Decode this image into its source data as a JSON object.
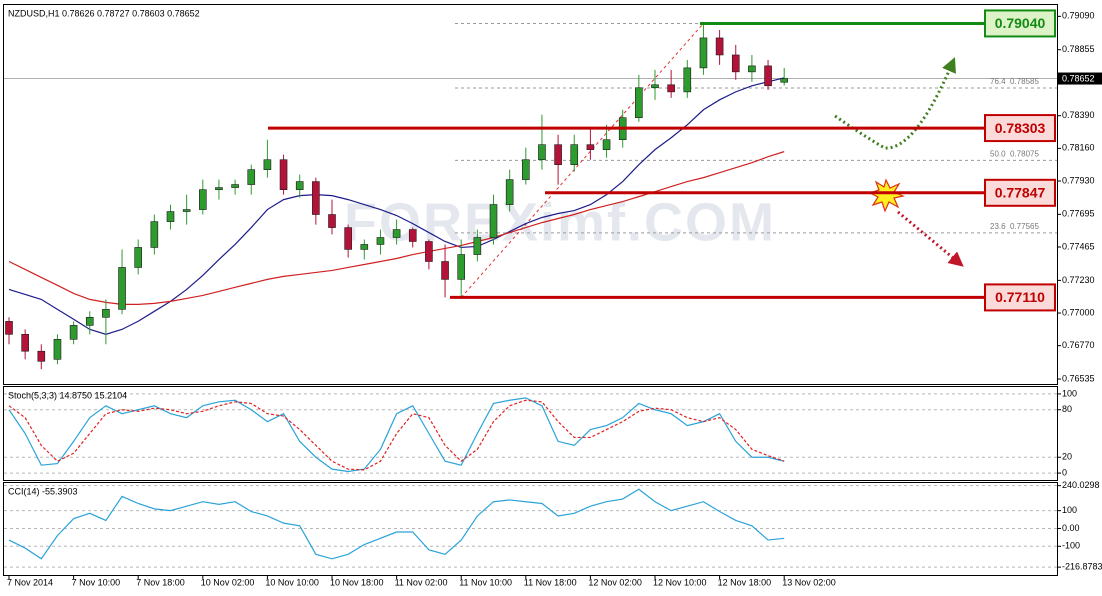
{
  "chart_data": [
    {
      "type": "candlestick",
      "title": "NZDUSD,H1  0.78626 0.78727 0.78603 0.78652",
      "watermark": "FOREXimf.COM",
      "ylim": [
        0.765,
        0.7917
      ],
      "yticks": [
        {
          "value": 0.7909,
          "label": "0.79090"
        },
        {
          "value": 0.78855,
          "label": "0.78855"
        },
        {
          "value": 0.7839,
          "label": "0.78390"
        },
        {
          "value": 0.7816,
          "label": "0.78160"
        },
        {
          "value": 0.7793,
          "label": "0.77930"
        },
        {
          "value": 0.77695,
          "label": "0.77695"
        },
        {
          "value": 0.77465,
          "label": "0.77465"
        },
        {
          "value": 0.7723,
          "label": "0.77230"
        },
        {
          "value": 0.77,
          "label": "0.77000"
        },
        {
          "value": 0.7677,
          "label": "0.76770"
        },
        {
          "value": 0.76535,
          "label": "0.76535"
        }
      ],
      "up_color": "#2e9b2e",
      "down_color": "#b5123a",
      "open": [
        0.76941,
        0.7685,
        0.76731,
        0.76674,
        0.76815,
        0.76913,
        0.7697,
        0.77026,
        0.77321,
        0.77462,
        0.77644,
        0.77715,
        0.77729,
        0.77869,
        0.77884,
        0.77905,
        0.7801,
        0.7808,
        0.77869,
        0.77926,
        0.77694,
        0.77602,
        0.77448,
        0.77483,
        0.77532,
        0.77588,
        0.77504,
        0.77363,
        0.77237,
        0.77412,
        0.77532,
        0.77764,
        0.7794,
        0.7808,
        0.78186,
        0.78045,
        0.78186,
        0.78151,
        0.78221,
        0.78376,
        0.78587,
        0.78608,
        0.78558,
        0.78727,
        0.78938,
        0.78818,
        0.78699,
        0.78741,
        0.78626
      ],
      "high": [
        0.7697,
        0.76885,
        0.7678,
        0.7685,
        0.76941,
        0.77012,
        0.77096,
        0.77448,
        0.77518,
        0.77694,
        0.77764,
        0.77834,
        0.7794,
        0.7794,
        0.7794,
        0.78045,
        0.78221,
        0.78115,
        0.77975,
        0.77954,
        0.77799,
        0.77623,
        0.77518,
        0.77588,
        0.77659,
        0.77602,
        0.77518,
        0.77483,
        0.77518,
        0.77588,
        0.77834,
        0.7801,
        0.78165,
        0.78397,
        0.78256,
        0.78256,
        0.78305,
        0.78326,
        0.78432,
        0.78678,
        0.78713,
        0.78713,
        0.78783,
        0.7904,
        0.78994,
        0.78889,
        0.78818,
        0.78783,
        0.78727
      ],
      "low": [
        0.7678,
        0.76674,
        0.76604,
        0.76639,
        0.7678,
        0.7685,
        0.7678,
        0.76991,
        0.77272,
        0.77412,
        0.77588,
        0.77623,
        0.77694,
        0.77799,
        0.77834,
        0.77834,
        0.77954,
        0.77834,
        0.77813,
        0.77623,
        0.77553,
        0.77391,
        0.77377,
        0.77412,
        0.77483,
        0.77462,
        0.77307,
        0.7711,
        0.7711,
        0.77363,
        0.77483,
        0.77715,
        0.77905,
        0.7801,
        0.77905,
        0.77996,
        0.7808,
        0.78094,
        0.78165,
        0.78347,
        0.78502,
        0.78516,
        0.78516,
        0.78678,
        0.78748,
        0.78643,
        0.78629,
        0.78572,
        0.78603
      ],
      "close": [
        0.7685,
        0.76731,
        0.7666,
        0.76815,
        0.76913,
        0.7697,
        0.77026,
        0.77321,
        0.77462,
        0.77644,
        0.77715,
        0.77729,
        0.77869,
        0.77884,
        0.77905,
        0.7801,
        0.7808,
        0.77869,
        0.77926,
        0.77694,
        0.77602,
        0.77448,
        0.77483,
        0.77532,
        0.77588,
        0.77504,
        0.77363,
        0.77237,
        0.77412,
        0.77532,
        0.77764,
        0.7794,
        0.7808,
        0.78186,
        0.78045,
        0.78186,
        0.78151,
        0.78221,
        0.78376,
        0.78587,
        0.78608,
        0.78558,
        0.78727,
        0.78938,
        0.78818,
        0.78699,
        0.78741,
        0.78601,
        0.78652
      ],
      "series": [
        {
          "color": "#1c1c8a",
          "values": [
            0.77166,
            0.77131,
            0.77096,
            0.77026,
            0.76956,
            0.76885,
            0.7685,
            0.76885,
            0.76942,
            0.77012,
            0.77082,
            0.77166,
            0.77265,
            0.77377,
            0.77483,
            0.77602,
            0.77729,
            0.77799,
            0.77827,
            0.77834,
            0.77827,
            0.77799,
            0.77764,
            0.77729,
            0.77687,
            0.7763,
            0.77567,
            0.77504,
            0.77462,
            0.77469,
            0.77518,
            0.77574,
            0.7763,
            0.77673,
            0.77701,
            0.77722,
            0.77764,
            0.77834,
            0.77926,
            0.78045,
            0.78151,
            0.78235,
            0.78326,
            0.78432,
            0.78502,
            0.78558,
            0.78601,
            0.78629,
            0.78657
          ]
        },
        {
          "color": "#d02020",
          "values": [
            0.77363,
            0.77307,
            0.77251,
            0.77195,
            0.77138,
            0.77096,
            0.77075,
            0.77061,
            0.77061,
            0.77068,
            0.77082,
            0.77103,
            0.77124,
            0.77152,
            0.77181,
            0.77209,
            0.77237,
            0.77258,
            0.77272,
            0.77286,
            0.773,
            0.77321,
            0.77342,
            0.77363,
            0.77384,
            0.77412,
            0.77434,
            0.77455,
            0.77476,
            0.77504,
            0.77532,
            0.77567,
            0.77602,
            0.77637,
            0.77666,
            0.77694,
            0.77729,
            0.77757,
            0.77785,
            0.7782,
            0.77855,
            0.77891,
            0.77926,
            0.77954,
            0.77989,
            0.78024,
            0.78059,
            0.78101,
            0.78137
          ]
        }
      ],
      "levels": [
        {
          "value": 0.7904,
          "label": "0.79040",
          "color": "#138a13",
          "fill": "#dcf3c8"
        },
        {
          "value": 0.78303,
          "label": "0.78303",
          "color": "#c00000",
          "fill": "#fbdada"
        },
        {
          "value": 0.77847,
          "label": "0.77847",
          "color": "#c00000",
          "fill": "#fbdada"
        },
        {
          "value": 0.7711,
          "label": "0.77110",
          "color": "#c00000",
          "fill": "#fbdada"
        }
      ],
      "fibonacci": [
        {
          "level": "76.4",
          "value": 0.78585,
          "label": "0.78585"
        },
        {
          "level": "50.0",
          "value": 0.78075,
          "label": "0.78075"
        },
        {
          "level": "23.6",
          "value": 0.77565,
          "label": "0.77565"
        }
      ],
      "current_price": {
        "value": 0.78652,
        "label": "0.78652"
      }
    },
    {
      "type": "line",
      "title": "Stoch(5,3,3) 14.8750 15.2104",
      "ylim": [
        -8.75,
        108.75
      ],
      "yticks": [
        100,
        80,
        20,
        0
      ],
      "grid": true,
      "series": [
        {
          "color": "#2aa3d8",
          "values": [
            80,
            50,
            10,
            12,
            40,
            70,
            85,
            75,
            80,
            85,
            75,
            70,
            85,
            90,
            92,
            80,
            65,
            75,
            40,
            20,
            5,
            2,
            5,
            30,
            75,
            85,
            50,
            15,
            10,
            50,
            88,
            92,
            95,
            85,
            40,
            35,
            55,
            60,
            70,
            88,
            80,
            75,
            60,
            65,
            75,
            40,
            20,
            20,
            14.875
          ]
        },
        {
          "color": "#e02020",
          "dashed": true,
          "values": [
            85,
            70,
            35,
            15,
            25,
            50,
            75,
            80,
            78,
            82,
            80,
            75,
            78,
            85,
            90,
            88,
            75,
            72,
            55,
            35,
            15,
            5,
            4,
            15,
            50,
            75,
            70,
            35,
            15,
            30,
            65,
            85,
            92,
            90,
            65,
            45,
            45,
            55,
            65,
            78,
            82,
            80,
            70,
            65,
            70,
            55,
            30,
            22,
            15.2104
          ]
        }
      ]
    },
    {
      "type": "line",
      "title": "CCI(14) -55.3903",
      "ylim": [
        -261,
        255
      ],
      "yticks": [
        240.0298,
        100,
        {
          "value": 0,
          "label": "0.00"
        },
        -100,
        -216.8783
      ],
      "grid": true,
      "categories": [
        "7 Nov 2014",
        null,
        null,
        null,
        "7 Nov 10:00",
        null,
        null,
        null,
        "7 Nov 18:00",
        null,
        null,
        null,
        "10 Nov 02:00",
        null,
        null,
        null,
        "10 Nov 10:00",
        null,
        null,
        null,
        "10 Nov 18:00",
        null,
        null,
        null,
        "11 Nov 02:00",
        null,
        null,
        null,
        "11 Nov 10:00",
        null,
        null,
        null,
        "11 Nov 18:00",
        null,
        null,
        null,
        "12 Nov 02:00",
        null,
        null,
        null,
        "12 Nov 10:00",
        null,
        null,
        null,
        "12 Nov 18:00",
        null,
        null,
        null,
        "13 Nov 02:00"
      ],
      "series": [
        {
          "color": "#2aa3d8",
          "values": [
            -65,
            -110,
            -170,
            -40,
            55,
            85,
            45,
            180,
            140,
            110,
            100,
            125,
            150,
            135,
            150,
            95,
            70,
            30,
            15,
            -145,
            -170,
            -145,
            -90,
            -55,
            -20,
            -20,
            -120,
            -145,
            -65,
            70,
            150,
            160,
            150,
            140,
            70,
            85,
            125,
            150,
            165,
            220,
            150,
            100,
            125,
            150,
            95,
            45,
            15,
            -65,
            -55.3903
          ]
        }
      ]
    }
  ]
}
